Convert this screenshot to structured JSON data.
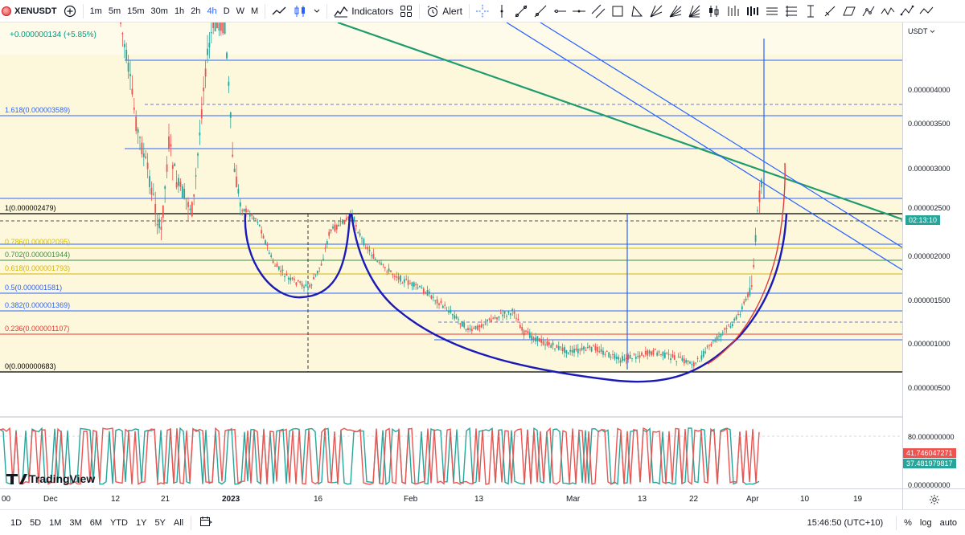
{
  "toolbar": {
    "symbol": "XENUSDT",
    "timeframes": [
      "1m",
      "5m",
      "15m",
      "30m",
      "1h",
      "2h",
      "4h",
      "D",
      "W",
      "M"
    ],
    "active_timeframe": "4h",
    "indicators_label": "Indicators",
    "alert_label": "Alert"
  },
  "chart": {
    "change_text": "+0.000000134 (+5.85%)",
    "currency": "USDT",
    "fib_levels": [
      {
        "label": "1.618(0.000003589)",
        "color": "#2962ff"
      },
      {
        "label": "1(0.000002479)",
        "color": "#000000"
      },
      {
        "label": "0.786(0.000002095)",
        "color": "#d6c100"
      },
      {
        "label": "0.702(0.000001944)",
        "color": "#3e8e3e"
      },
      {
        "label": "0.618(0.000001793)",
        "color": "#d6b400"
      },
      {
        "label": "0.5(0.000001581)",
        "color": "#2962ff"
      },
      {
        "label": "0.382(0.000001369)",
        "color": "#2962ff"
      },
      {
        "label": "0.236(0.000001107)",
        "color": "#e53935"
      },
      {
        "label": "0(0.000000683)",
        "color": "#000000"
      }
    ],
    "price_labels": [
      "0.000004000",
      "0.000003500",
      "0.000003000",
      "0.000002500",
      "0.000002000",
      "0.000001500",
      "0.000001000",
      "0.000000500"
    ],
    "countdown": "02:13:10",
    "osc_labels": [
      "80.000000000",
      "0.000000000"
    ],
    "osc_values": [
      "41.746047271",
      "37.481979817"
    ],
    "watermark": "TradingView"
  },
  "time_axis": [
    "00",
    "Dec",
    "12",
    "21",
    "2023",
    "16",
    "Feb",
    "13",
    "Mar",
    "13",
    "22",
    "Apr",
    "10",
    "19"
  ],
  "bottom": {
    "ranges": [
      "1D",
      "5D",
      "1M",
      "3M",
      "6M",
      "YTD",
      "1Y",
      "5Y",
      "All"
    ],
    "clock": "15:46:50 (UTC+10)",
    "percent": "%",
    "log": "log",
    "auto": "auto"
  },
  "colors": {
    "up": "#26a69a",
    "down": "#ef5350",
    "fib_bg": "#fdf7d8",
    "accent": "#2962ff"
  }
}
